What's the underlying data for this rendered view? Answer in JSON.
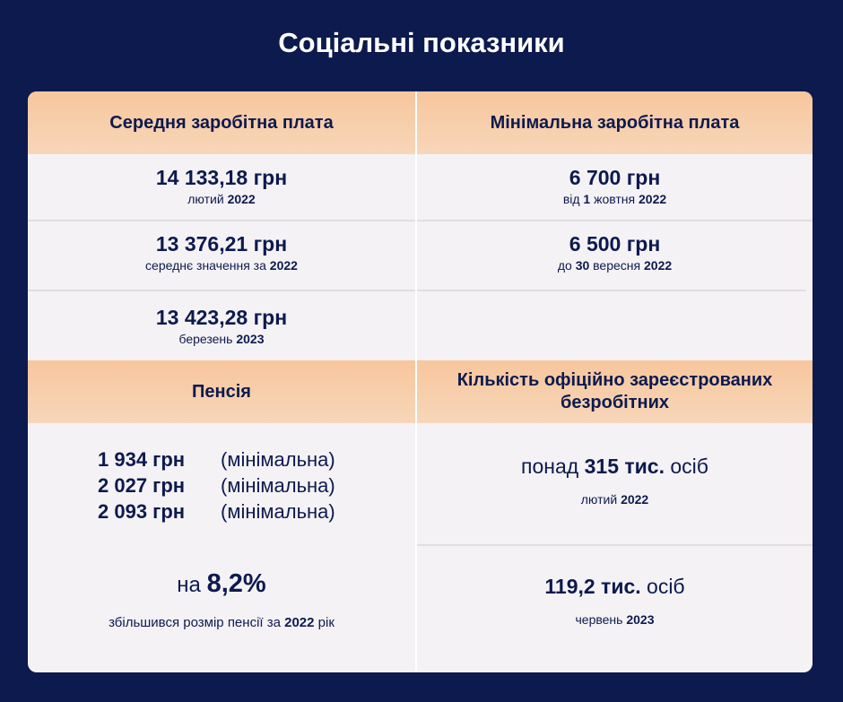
{
  "title": "Соціальні показники",
  "headers": {
    "avg_salary": "Середня заробітна плата",
    "min_salary": "Мінімальна заробітна плата",
    "pension": "Пенсія",
    "unemployed_line1": "Кількість офіційно зареєстрованих",
    "unemployed_line2": "безробітних"
  },
  "avg_salary": [
    {
      "value": "14 133,18 грн",
      "label": "лютий",
      "year": "2022"
    },
    {
      "value": "13 376,21 грн",
      "label": "середнє значення за",
      "year": "2022"
    },
    {
      "value": "13 423,28 грн",
      "label": "березень",
      "year": "2023"
    }
  ],
  "min_salary": [
    {
      "value": "6 700 грн",
      "label_pre": "від",
      "num": "1",
      "label_post": "жовтня",
      "year": "2022"
    },
    {
      "value": "6 500 грн",
      "label_pre": "до",
      "num": "30",
      "label_post": "вересня",
      "year": "2022"
    }
  ],
  "pension": {
    "rows": [
      {
        "value": "1 934 грн",
        "note": "(мінімальна)"
      },
      {
        "value": "2 027 грн",
        "note": "(мінімальна)"
      },
      {
        "value": "2 093 грн",
        "note": "(мінімальна)"
      }
    ],
    "increase_prefix": "на",
    "increase_value": "8,2%",
    "increase_text": "збільшився розмір пенсії за",
    "increase_year": "2022",
    "increase_suffix": "рік"
  },
  "unemployed": [
    {
      "prefix": "понад",
      "value": "315 тис.",
      "suffix": "осіб",
      "label": "лютий",
      "year": "2022"
    },
    {
      "prefix": "",
      "value": "119,2 тис.",
      "suffix": "осіб",
      "label": "червень",
      "year": "2023"
    }
  ]
}
